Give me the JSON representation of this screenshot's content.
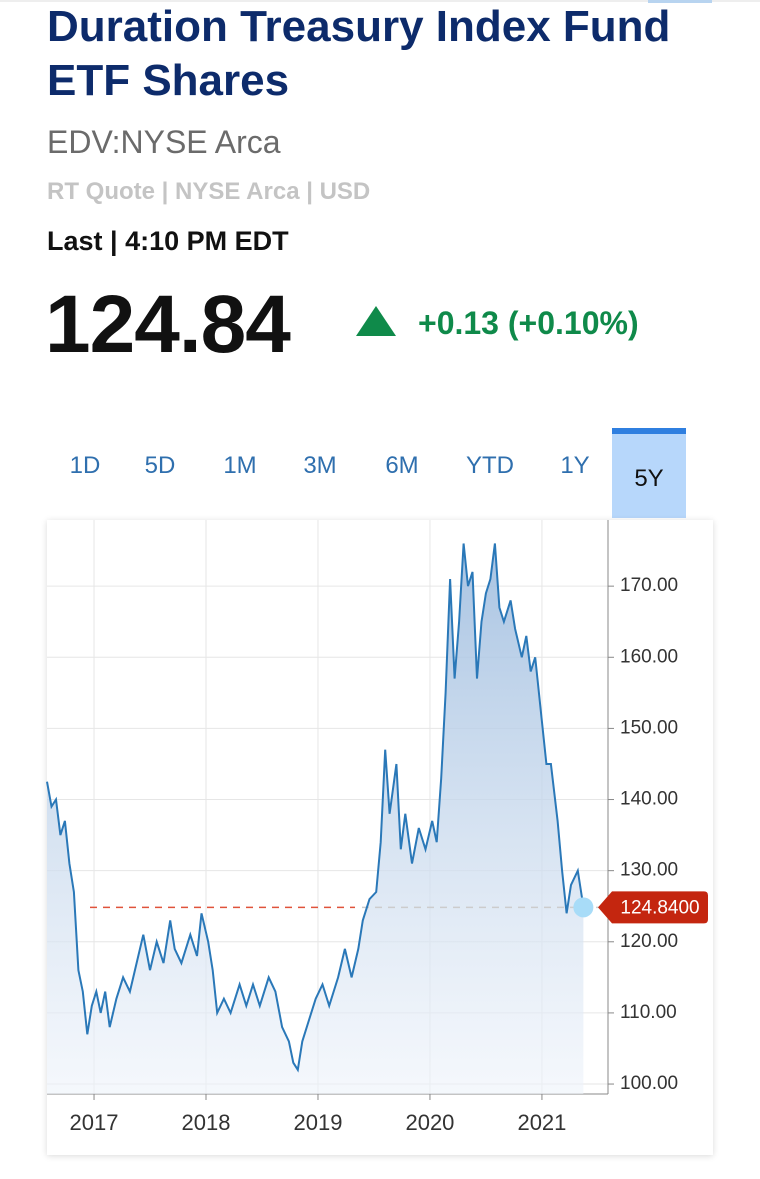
{
  "header": {
    "title": "Duration Treasury Index Fund ETF Shares",
    "symbol": "EDV:NYSE Arca",
    "quote_source": "RT Quote | NYSE Arca | USD",
    "last_time": "Last | 4:10 PM EDT",
    "price": 124.84,
    "change": "+0.13 (+0.10%)"
  },
  "tabs": {
    "items": [
      "1D",
      "5D",
      "1M",
      "3M",
      "6M",
      "YTD",
      "1Y",
      "5Y"
    ],
    "active": "5Y"
  },
  "chart_data": {
    "type": "line",
    "color": "#2a78b8",
    "x": [
      2016.58,
      2016.62,
      2016.66,
      2016.7,
      2016.74,
      2016.78,
      2016.82,
      2016.86,
      2016.9,
      2016.94,
      2016.98,
      2017.02,
      2017.06,
      2017.1,
      2017.14,
      2017.2,
      2017.26,
      2017.32,
      2017.38,
      2017.44,
      2017.5,
      2017.56,
      2017.62,
      2017.68,
      2017.72,
      2017.78,
      2017.86,
      2017.92,
      2017.96,
      2018.02,
      2018.06,
      2018.1,
      2018.16,
      2018.22,
      2018.3,
      2018.36,
      2018.42,
      2018.48,
      2018.56,
      2018.62,
      2018.68,
      2018.74,
      2018.78,
      2018.82,
      2018.86,
      2018.92,
      2018.98,
      2019.04,
      2019.1,
      2019.18,
      2019.24,
      2019.3,
      2019.36,
      2019.4,
      2019.46,
      2019.52,
      2019.56,
      2019.6,
      2019.64,
      2019.7,
      2019.74,
      2019.78,
      2019.84,
      2019.9,
      2019.96,
      2020.02,
      2020.06,
      2020.1,
      2020.14,
      2020.18,
      2020.22,
      2020.26,
      2020.3,
      2020.34,
      2020.38,
      2020.42,
      2020.46,
      2020.5,
      2020.54,
      2020.58,
      2020.62,
      2020.66,
      2020.72,
      2020.76,
      2020.82,
      2020.86,
      2020.9,
      2020.94,
      2021.0,
      2021.04,
      2021.08,
      2021.14,
      2021.18,
      2021.22,
      2021.26,
      2021.32,
      2021.36,
      2021.37
    ],
    "values": [
      142.5,
      139,
      140,
      135,
      137,
      131,
      127,
      116,
      113,
      107,
      111,
      113,
      110,
      113,
      108,
      112,
      115,
      113,
      117,
      121,
      116,
      120,
      117,
      123,
      119,
      117,
      121,
      118,
      124,
      120,
      116,
      110,
      112,
      110,
      114,
      111,
      114,
      111,
      115,
      113,
      108,
      106,
      103,
      102,
      106,
      109,
      112,
      114,
      111,
      115,
      119,
      115,
      119,
      123,
      126,
      127,
      134,
      147,
      138,
      145,
      133,
      138,
      131,
      136,
      133,
      137,
      134,
      143,
      155,
      171,
      157,
      165,
      176,
      170,
      172,
      157,
      165,
      169,
      171,
      176,
      167,
      165,
      168,
      164,
      160,
      163,
      158,
      160,
      151,
      145,
      145,
      137,
      130,
      124,
      128,
      130,
      126,
      124.84
    ],
    "reference_line": {
      "value": 124.84,
      "label": "124.8400"
    },
    "xlim": [
      2016.58,
      2021.59
    ],
    "xticks": [
      2017,
      2018,
      2019,
      2020,
      2021
    ],
    "ylim": [
      98.6,
      179.3
    ],
    "yticks": [
      {
        "value": 100,
        "label": "100.00"
      },
      {
        "value": 110,
        "label": "110.00"
      },
      {
        "value": 120,
        "label": "120.00"
      },
      {
        "value": 130,
        "label": "130.00"
      },
      {
        "value": 140,
        "label": "140.00"
      },
      {
        "value": 150,
        "label": "150.00"
      },
      {
        "value": 160,
        "label": "160.00"
      },
      {
        "value": 170,
        "label": "170.00"
      }
    ],
    "grid": true
  }
}
